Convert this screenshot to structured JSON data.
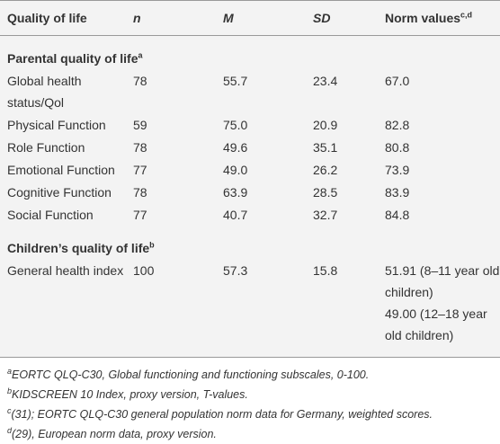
{
  "table": {
    "header": {
      "cells": [
        "Quality of life",
        "n",
        "M",
        "SD",
        "Norm values"
      ],
      "norm_sup": "c,d"
    },
    "sections": [
      {
        "title": "Parental quality of life",
        "sup": "a",
        "rows": [
          [
            "Global health status/Qol",
            "78",
            "55.7",
            "23.4",
            "67.0"
          ],
          [
            "Physical Function",
            "59",
            "75.0",
            "20.9",
            "82.8"
          ],
          [
            "Role Function",
            "78",
            "49.6",
            "35.1",
            "80.8"
          ],
          [
            "Emotional Function",
            "77",
            "49.0",
            "26.2",
            "73.9"
          ],
          [
            "Cognitive Function",
            "78",
            "63.9",
            "28.5",
            "83.9"
          ],
          [
            "Social Function",
            "77",
            "40.7",
            "32.7",
            "84.8"
          ]
        ]
      },
      {
        "title": "Children’s quality of life",
        "sup": "b",
        "rows": [
          [
            "General health index",
            "100",
            "57.3",
            "15.8",
            [
              "51.91 (8–11 year old children)",
              "49.00 (12–18 year old children)"
            ]
          ]
        ]
      }
    ]
  },
  "footnotes": [
    {
      "mark": "a",
      "text": "EORTC QLQ-C30, Global functioning and functioning subscales, 0-100."
    },
    {
      "mark": "b",
      "text": "KIDSCREEN 10 Index, proxy version, T-values."
    },
    {
      "mark": "c",
      "text": "(31); EORTC QLQ-C30 general population norm data for Germany, weighted scores."
    },
    {
      "mark": "d",
      "text": "(29), European norm data, proxy version."
    }
  ]
}
